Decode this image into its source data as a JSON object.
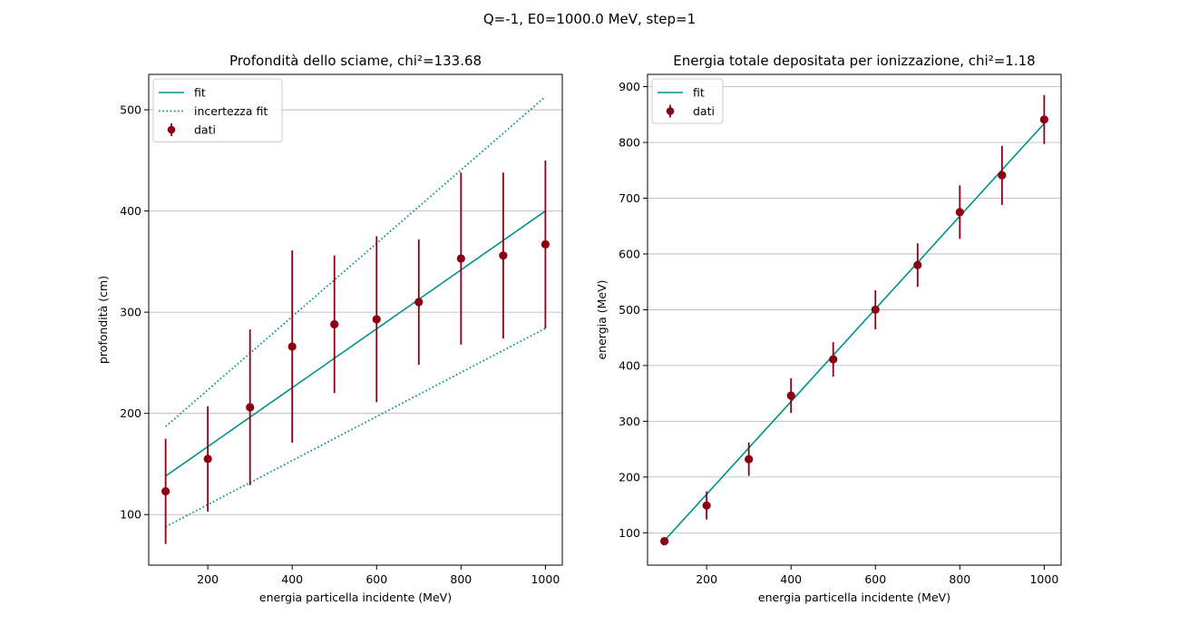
{
  "figure": {
    "suptitle": "Q=-1, E0=1000.0 MeV, step=1"
  },
  "colors": {
    "fit": "#00918a",
    "data": "#8b0012",
    "grid": "#b0b0b0"
  },
  "chart_data": [
    {
      "type": "scatter",
      "title": "Profondità dello sciame, chi²=133.68",
      "xlabel": "energia particella incidente (MeV)",
      "ylabel": "profondità (cm)",
      "xlim": [
        60,
        1040
      ],
      "ylim": [
        50,
        535
      ],
      "xticks": [
        200,
        400,
        600,
        800,
        1000
      ],
      "yticks": [
        100,
        200,
        300,
        400,
        500
      ],
      "grid": "horizontal",
      "legend_position": "top-left",
      "legend": [
        "fit",
        "incertezza fit",
        "dati"
      ],
      "series": [
        {
          "name": "fit",
          "kind": "line",
          "style": "solid",
          "x": [
            100,
            1000
          ],
          "y": [
            138,
            400
          ]
        },
        {
          "name": "incertezza fit",
          "kind": "line",
          "style": "dotted",
          "x": [
            100,
            1000
          ],
          "y": [
            187,
            513
          ]
        },
        {
          "name": "incertezza fit",
          "kind": "line",
          "style": "dotted",
          "x": [
            100,
            1000
          ],
          "y": [
            88,
            284
          ]
        },
        {
          "name": "dati",
          "kind": "errorbar",
          "x": [
            100,
            200,
            300,
            400,
            500,
            600,
            700,
            800,
            900,
            1000
          ],
          "y": [
            123,
            155,
            206,
            266,
            288,
            293,
            310,
            353,
            356,
            367
          ],
          "err": [
            52,
            52,
            77,
            95,
            68,
            82,
            62,
            85,
            82,
            83
          ]
        }
      ]
    },
    {
      "type": "scatter",
      "title": "Energia totale depositata per ionizzazione, chi²=1.18",
      "xlabel": "energia particella incidente (MeV)",
      "ylabel": "energia (MeV)",
      "xlim": [
        60,
        1040
      ],
      "ylim": [
        42,
        922
      ],
      "xticks": [
        200,
        400,
        600,
        800,
        1000
      ],
      "yticks": [
        100,
        200,
        300,
        400,
        500,
        600,
        700,
        800,
        900
      ],
      "grid": "horizontal",
      "legend_position": "top-left",
      "legend": [
        "fit",
        "dati"
      ],
      "series": [
        {
          "name": "fit",
          "kind": "line",
          "style": "solid",
          "x": [
            100,
            1000
          ],
          "y": [
            86,
            834
          ]
        },
        {
          "name": "dati",
          "kind": "errorbar",
          "x": [
            100,
            200,
            300,
            400,
            500,
            600,
            700,
            800,
            900,
            1000
          ],
          "y": [
            85,
            149,
            232,
            346,
            411,
            500,
            580,
            675,
            741,
            841
          ],
          "err": [
            2,
            25,
            30,
            31,
            31,
            35,
            39,
            48,
            53,
            44
          ]
        }
      ]
    }
  ]
}
